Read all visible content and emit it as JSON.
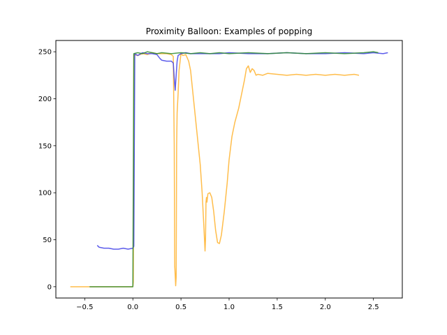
{
  "chart_data": {
    "type": "line",
    "title": "Proximity Balloon: Examples of popping",
    "xlabel": "",
    "ylabel": "",
    "xlim": [
      -0.8,
      2.8
    ],
    "ylim": [
      -12,
      262
    ],
    "xticks": [
      -0.5,
      0.0,
      0.5,
      1.0,
      1.5,
      2.0,
      2.5
    ],
    "xtick_labels": [
      "−0.5",
      "0.0",
      "0.5",
      "1.0",
      "1.5",
      "2.0",
      "2.5"
    ],
    "yticks": [
      0,
      50,
      100,
      150,
      200,
      250
    ],
    "ytick_labels": [
      "0",
      "50",
      "100",
      "150",
      "200",
      "250"
    ],
    "grid": false,
    "legend": "none",
    "series": [
      {
        "color": "#FFB22C",
        "x": [
          -0.65,
          -0.45,
          -0.3,
          -0.1,
          0.0,
          0.005,
          0.01,
          0.05,
          0.1,
          0.15,
          0.2,
          0.25,
          0.3,
          0.35,
          0.4,
          0.42,
          0.43,
          0.435,
          0.44,
          0.445,
          0.45,
          0.455,
          0.46,
          0.47,
          0.48,
          0.5,
          0.52,
          0.55,
          0.58,
          0.6,
          0.62,
          0.65,
          0.68,
          0.7,
          0.72,
          0.74,
          0.75,
          0.755,
          0.76,
          0.765,
          0.77,
          0.78,
          0.8,
          0.82,
          0.84,
          0.86,
          0.88,
          0.9,
          0.92,
          0.95,
          0.98,
          1.0,
          1.03,
          1.06,
          1.1,
          1.13,
          1.16,
          1.18,
          1.2,
          1.22,
          1.24,
          1.26,
          1.28,
          1.3,
          1.35,
          1.4,
          1.5,
          1.6,
          1.7,
          1.8,
          1.9,
          2.0,
          2.1,
          2.2,
          2.3,
          2.35
        ],
        "y": [
          0,
          0,
          0,
          0,
          0,
          5,
          247,
          246,
          248,
          247,
          249,
          248,
          248,
          248,
          247,
          245,
          150,
          22,
          12,
          1,
          10,
          150,
          185,
          205,
          230,
          248,
          246,
          247,
          240,
          230,
          210,
          180,
          150,
          130,
          100,
          60,
          38,
          50,
          90,
          95,
          90,
          99,
          100,
          95,
          80,
          60,
          47,
          46,
          55,
          80,
          110,
          135,
          160,
          175,
          190,
          205,
          220,
          232,
          235,
          228,
          232,
          230,
          225,
          226,
          225,
          227,
          226,
          225,
          226,
          225,
          226,
          225,
          226,
          225,
          226,
          225
        ]
      },
      {
        "color": "#3F3FE8",
        "x": [
          -0.37,
          -0.35,
          -0.3,
          -0.25,
          -0.2,
          -0.15,
          -0.1,
          -0.05,
          0.0,
          0.01,
          0.02,
          0.05,
          0.1,
          0.15,
          0.2,
          0.25,
          0.28,
          0.3,
          0.35,
          0.4,
          0.42,
          0.43,
          0.44,
          0.45,
          0.46,
          0.47,
          0.5,
          0.55,
          0.6,
          0.7,
          0.8,
          0.9,
          1.0,
          1.2,
          1.4,
          1.6,
          1.8,
          2.0,
          2.2,
          2.4,
          2.5,
          2.6,
          2.65
        ],
        "y": [
          44,
          42,
          41,
          41,
          40,
          40,
          41,
          40,
          41,
          43,
          248,
          246,
          249,
          248,
          248,
          247,
          243,
          241,
          240,
          240,
          238,
          222,
          209,
          225,
          240,
          246,
          248,
          249,
          248,
          248,
          248,
          248,
          249,
          248,
          248,
          249,
          248,
          248,
          249,
          248,
          249,
          248,
          249
        ]
      },
      {
        "color": "#2E8B2E",
        "x": [
          -0.45,
          -0.3,
          -0.1,
          0.0,
          0.005,
          0.01,
          0.05,
          0.1,
          0.15,
          0.2,
          0.25,
          0.3,
          0.4,
          0.5,
          0.6,
          0.7,
          0.8,
          0.9,
          1.0,
          1.2,
          1.4,
          1.6,
          1.8,
          2.0,
          2.2,
          2.4,
          2.5,
          2.55
        ],
        "y": [
          0,
          0,
          0,
          0,
          120,
          248,
          249,
          248,
          250,
          249,
          248,
          249,
          248,
          249,
          248,
          249,
          248,
          249,
          248,
          249,
          248,
          249,
          248,
          249,
          248,
          249,
          250,
          249
        ]
      }
    ]
  }
}
